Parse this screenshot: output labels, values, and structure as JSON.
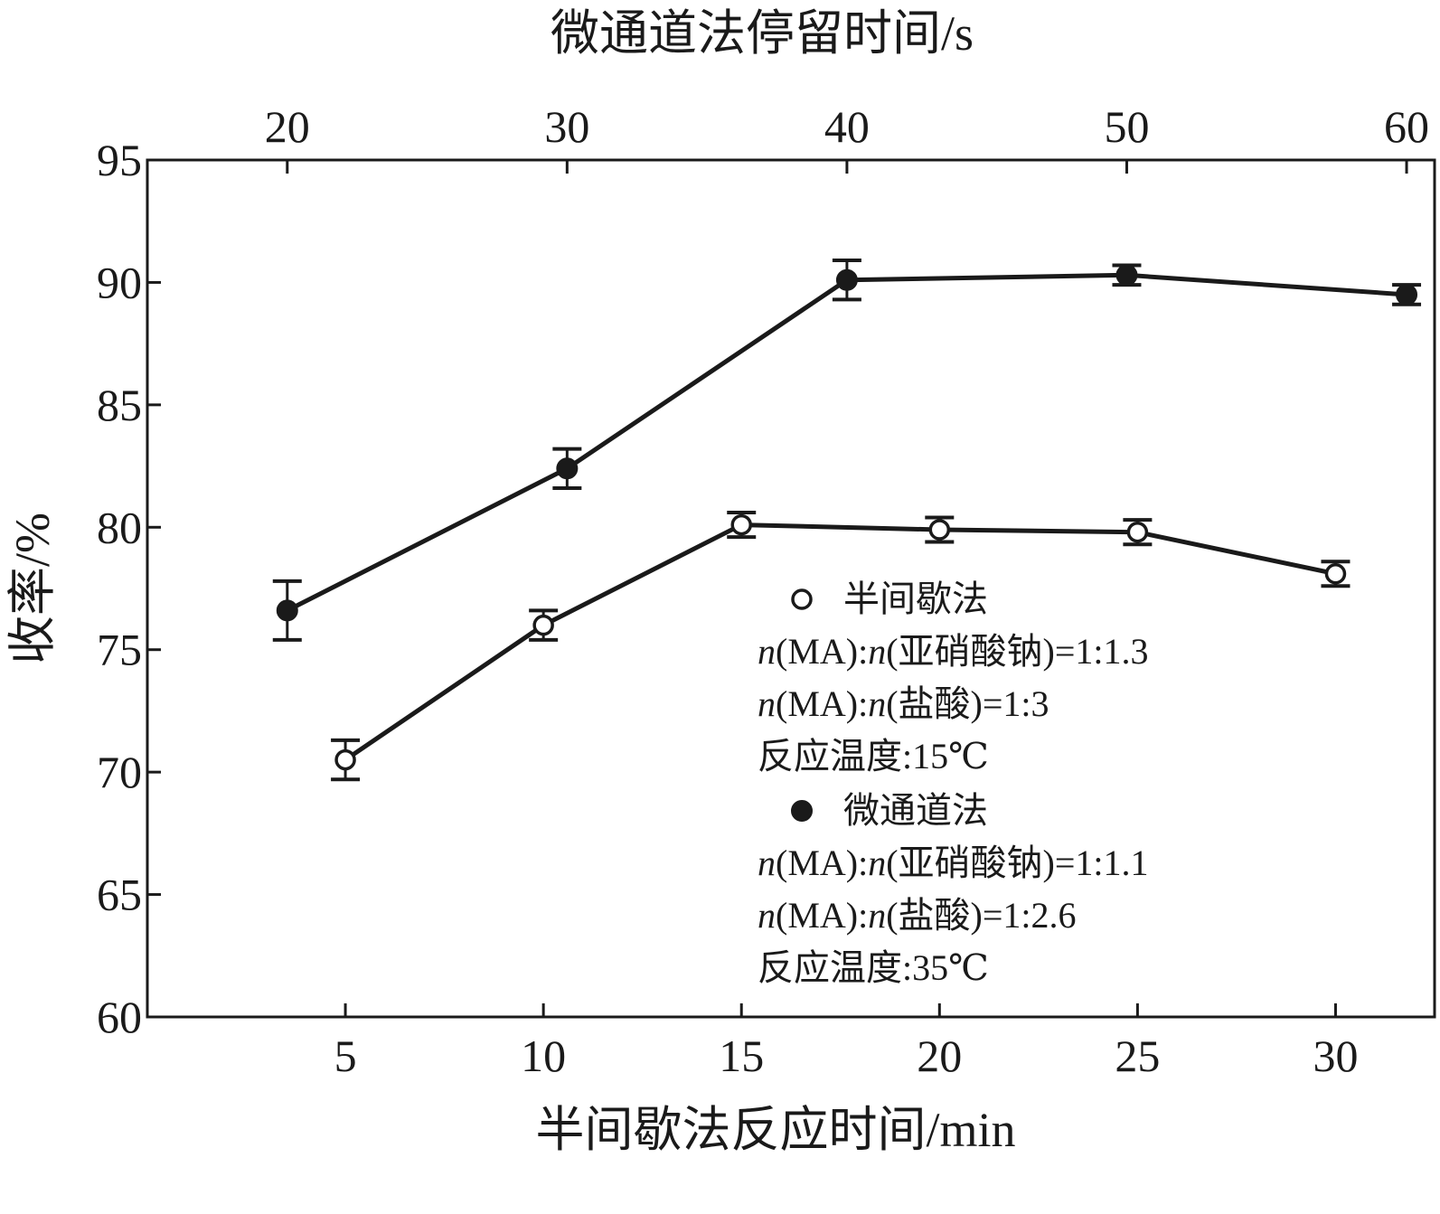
{
  "chart_data": {
    "type": "line",
    "xlabel": "半间歇法反应时间/min",
    "x2label": "微通道法停留时间/s",
    "ylabel": "收率/%",
    "xlim": [
      0,
      32.5
    ],
    "ylim": [
      60,
      95
    ],
    "x2lim": [
      15,
      61
    ],
    "xticks": [
      5,
      10,
      15,
      20,
      25,
      30
    ],
    "x2ticks": [
      20,
      30,
      40,
      50,
      60
    ],
    "yticks": [
      60,
      65,
      70,
      75,
      80,
      85,
      90,
      95
    ],
    "grid": false,
    "legend_placement": "center-right",
    "series": [
      {
        "name": "半间歇法",
        "axis": "bottom",
        "marker": "open-circle",
        "x": [
          5,
          10,
          15,
          20,
          25,
          30
        ],
        "y": [
          70.5,
          76.0,
          80.1,
          79.9,
          79.8,
          78.1
        ],
        "error": [
          0.8,
          0.6,
          0.5,
          0.5,
          0.5,
          0.5
        ]
      },
      {
        "name": "微通道法",
        "axis": "top",
        "marker": "filled-circle",
        "x": [
          20,
          30,
          40,
          50,
          60
        ],
        "y": [
          76.6,
          82.4,
          90.1,
          90.3,
          89.5
        ],
        "error": [
          1.2,
          0.8,
          0.8,
          0.4,
          0.4
        ]
      }
    ],
    "legend": {
      "entries": [
        {
          "label": "半间歇法",
          "marker": "open-circle",
          "notes": [
            [
              "n",
              "(MA):",
              "n",
              "(亚硝酸钠)=1:1.3"
            ],
            [
              "n",
              "(MA):",
              "n",
              "(盐酸)=1:3"
            ],
            [
              "",
              "反应温度:15℃",
              "",
              ""
            ]
          ]
        },
        {
          "label": "微通道法",
          "marker": "filled-circle",
          "notes": [
            [
              "n",
              "(MA):",
              "n",
              "(亚硝酸钠)=1:1.1"
            ],
            [
              "n",
              "(MA):",
              "n",
              "(盐酸)=1:2.6"
            ],
            [
              "",
              "反应温度:35℃",
              "",
              ""
            ]
          ]
        }
      ]
    }
  }
}
